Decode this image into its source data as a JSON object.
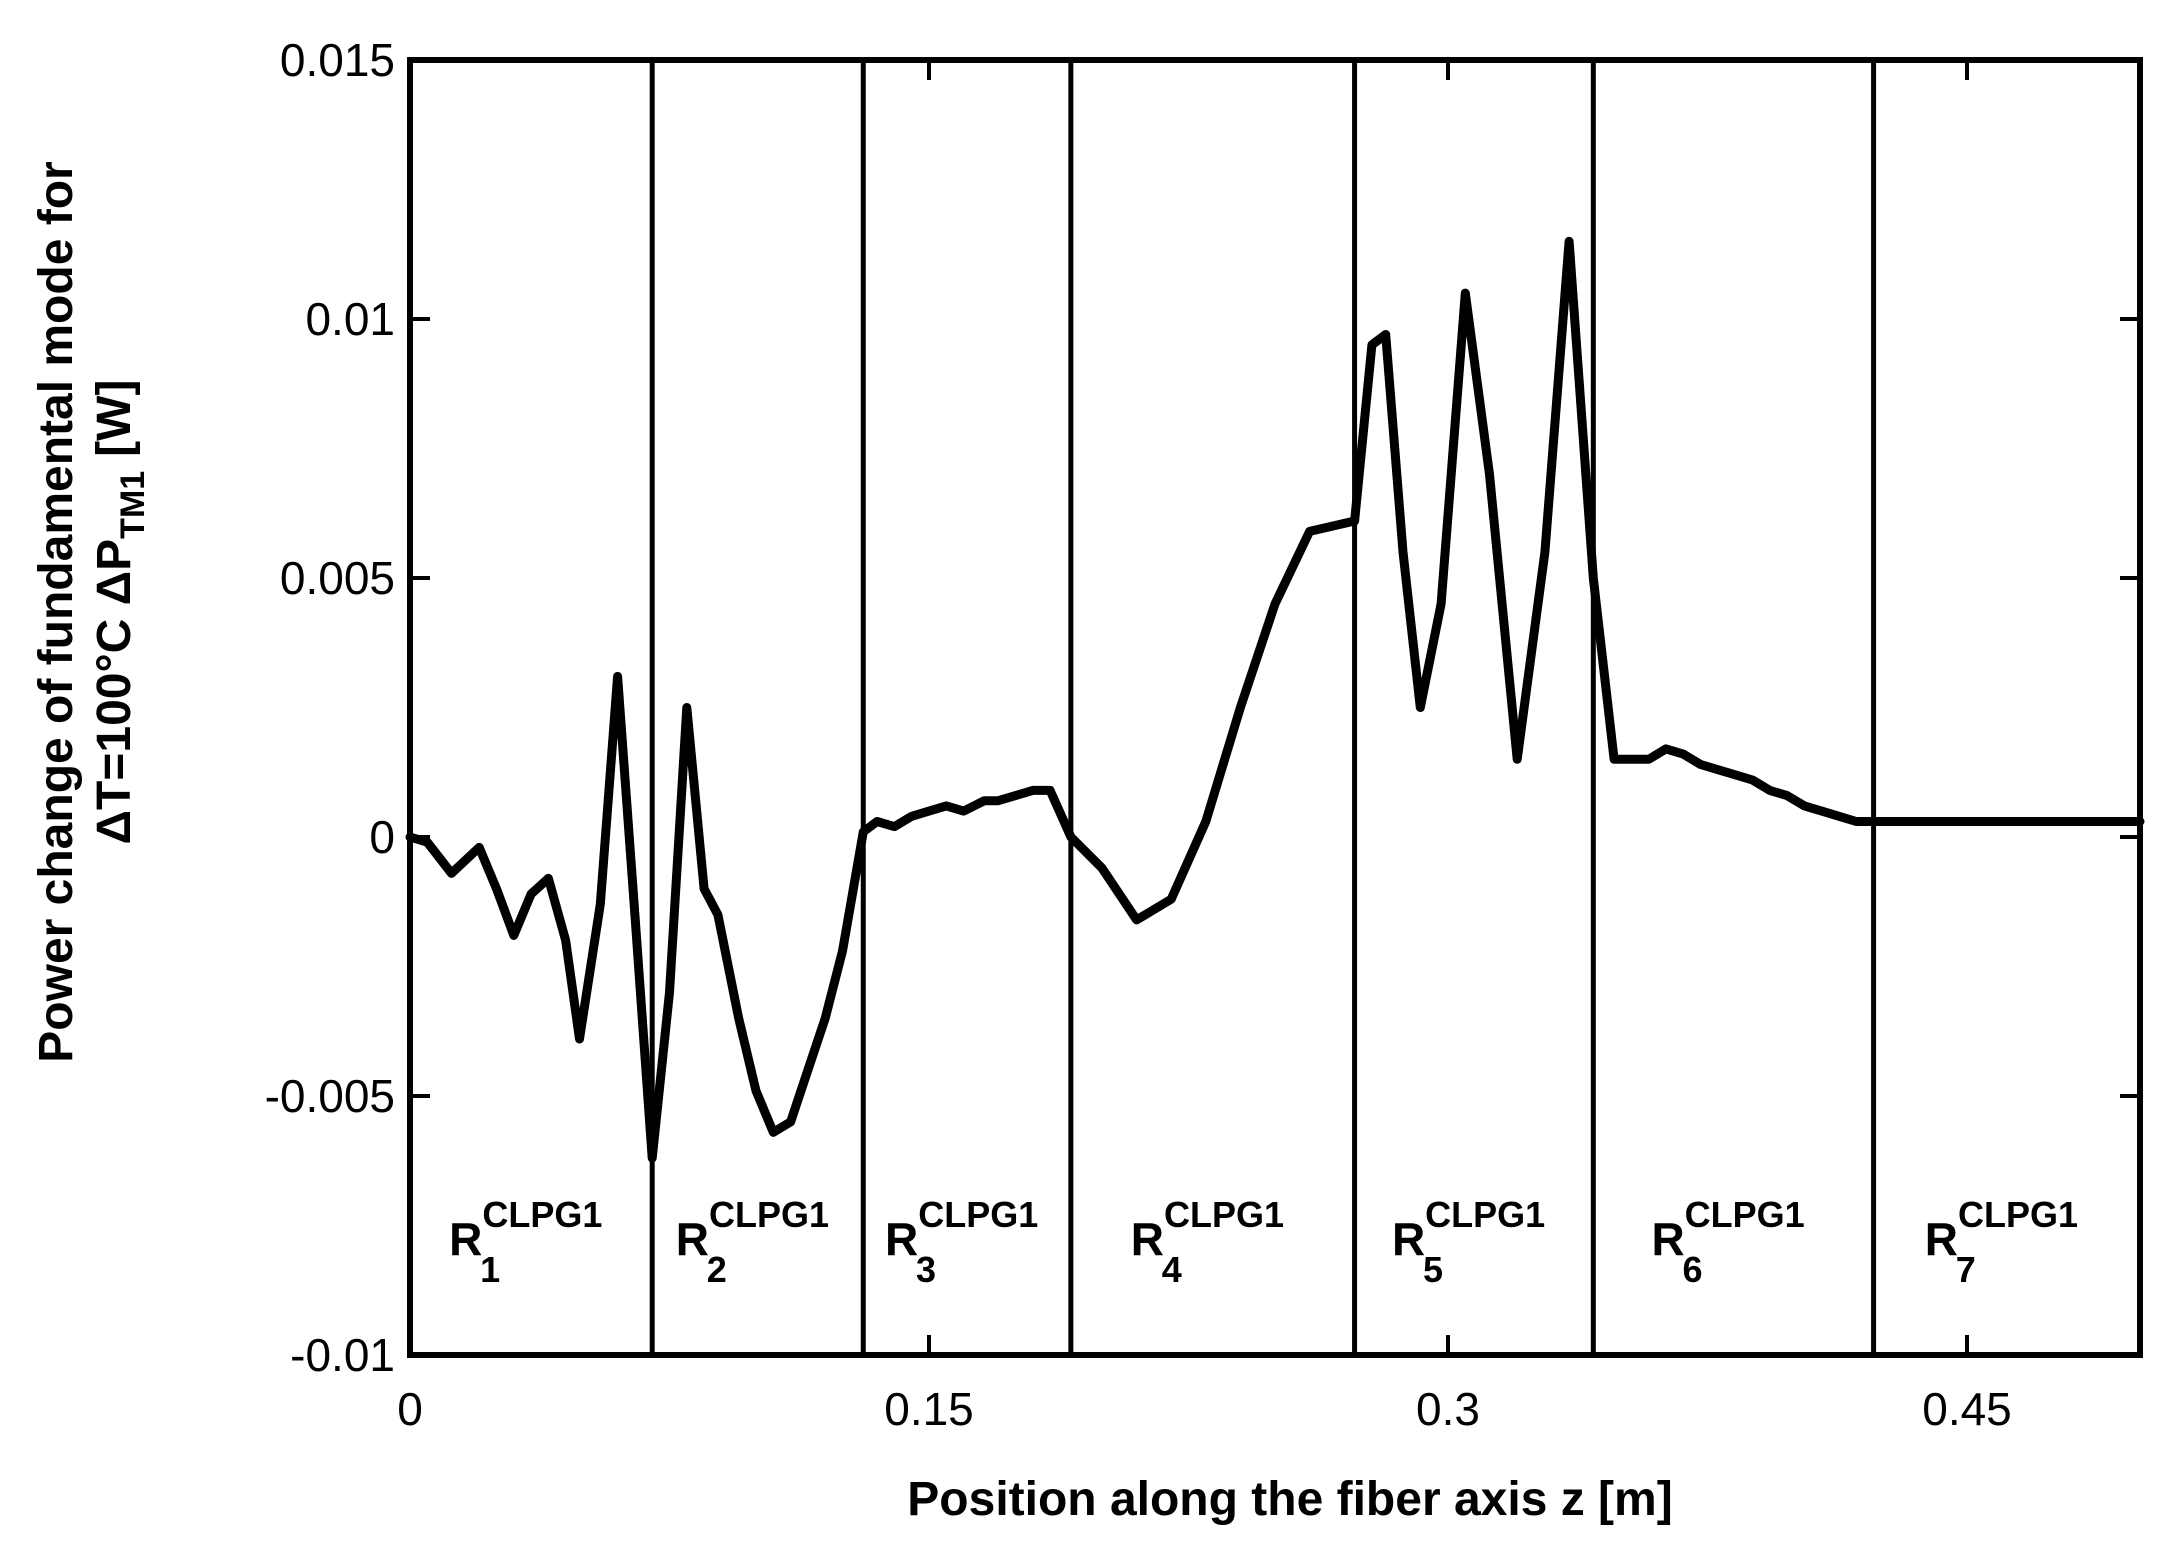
{
  "chart_data": {
    "type": "line",
    "xlabel": "Position along the fiber axis z [m]",
    "ylabel": {
      "line1": "Power change of fundamental mode for",
      "line2_prefix": "ΔT=100°C   ΔP",
      "line2_sub": "TM1",
      "line2_suffix": "[W]"
    },
    "xlim": [
      0,
      0.5
    ],
    "ylim": [
      -0.01,
      0.015
    ],
    "x_ticks": [
      {
        "value": 0,
        "label": "0"
      },
      {
        "value": 0.15,
        "label": "0.15"
      },
      {
        "value": 0.3,
        "label": "0.3"
      },
      {
        "value": 0.45,
        "label": "0.45"
      }
    ],
    "y_ticks": [
      {
        "value": 0.015,
        "label": "0.015"
      },
      {
        "value": 0.01,
        "label": "0.01"
      },
      {
        "value": 0.005,
        "label": "0.005"
      },
      {
        "value": 0,
        "label": "0"
      },
      {
        "value": -0.005,
        "label": "-0.005"
      },
      {
        "value": -0.01,
        "label": "-0.01"
      }
    ],
    "grid": false,
    "legend": "none",
    "region_boundaries": [
      0.07,
      0.131,
      0.191,
      0.273,
      0.342,
      0.423
    ],
    "region_labels": [
      {
        "base": "R",
        "sub": "1",
        "sup": "CLPG1"
      },
      {
        "base": "R",
        "sub": "2",
        "sup": "CLPG1"
      },
      {
        "base": "R",
        "sub": "3",
        "sup": "CLPG1"
      },
      {
        "base": "R",
        "sub": "4",
        "sup": "CLPG1"
      },
      {
        "base": "R",
        "sub": "5",
        "sup": "CLPG1"
      },
      {
        "base": "R",
        "sub": "6",
        "sup": "CLPG1"
      },
      {
        "base": "R",
        "sub": "7",
        "sup": "CLPG1"
      }
    ],
    "series": [
      {
        "x": [
          0,
          0.005,
          0.012,
          0.02,
          0.025,
          0.03,
          0.035,
          0.04,
          0.045,
          0.049,
          0.055,
          0.06,
          0.065,
          0.07,
          0.075,
          0.08,
          0.085,
          0.089,
          0.095,
          0.1,
          0.105,
          0.11,
          0.115,
          0.12,
          0.125,
          0.131,
          0.135,
          0.14,
          0.145,
          0.15,
          0.155,
          0.16,
          0.166,
          0.17,
          0.175,
          0.18,
          0.185,
          0.191,
          0.2,
          0.21,
          0.22,
          0.23,
          0.24,
          0.25,
          0.26,
          0.273,
          0.278,
          0.282,
          0.287,
          0.292,
          0.298,
          0.305,
          0.312,
          0.32,
          0.328,
          0.335,
          0.342,
          0.348,
          0.353,
          0.358,
          0.363,
          0.368,
          0.373,
          0.378,
          0.383,
          0.388,
          0.393,
          0.398,
          0.403,
          0.408,
          0.413,
          0.418,
          0.423,
          0.43,
          0.44,
          0.45,
          0.46,
          0.47,
          0.48,
          0.49,
          0.5
        ],
        "y": [
          0,
          -0.0001,
          -0.0007,
          -0.0002,
          -0.001,
          -0.0019,
          -0.0011,
          -0.0008,
          -0.002,
          -0.0039,
          -0.0013,
          0.0031,
          -0.0015,
          -0.0062,
          -0.003,
          0.0025,
          -0.001,
          -0.0015,
          -0.0035,
          -0.0049,
          -0.0057,
          -0.0055,
          -0.0045,
          -0.0035,
          -0.0022,
          0.0001,
          0.0003,
          0.0002,
          0.0004,
          0.0005,
          0.0006,
          0.0005,
          0.0007,
          0.0007,
          0.0008,
          0.0009,
          0.0009,
          0.0,
          -0.0006,
          -0.0016,
          -0.0012,
          0.0003,
          0.0025,
          0.0045,
          0.0059,
          0.0061,
          0.0095,
          0.0097,
          0.0055,
          0.0025,
          0.0045,
          0.0105,
          0.007,
          0.0015,
          0.0055,
          0.0115,
          0.005,
          0.0015,
          0.0015,
          0.0015,
          0.0017,
          0.0016,
          0.0014,
          0.0013,
          0.0012,
          0.0011,
          0.0009,
          0.0008,
          0.0006,
          0.0005,
          0.0004,
          0.0003,
          0.0003,
          0.0003,
          0.0003,
          0.0003,
          0.0003,
          0.0003,
          0.0003,
          0.0003,
          0.0003
        ]
      }
    ]
  }
}
